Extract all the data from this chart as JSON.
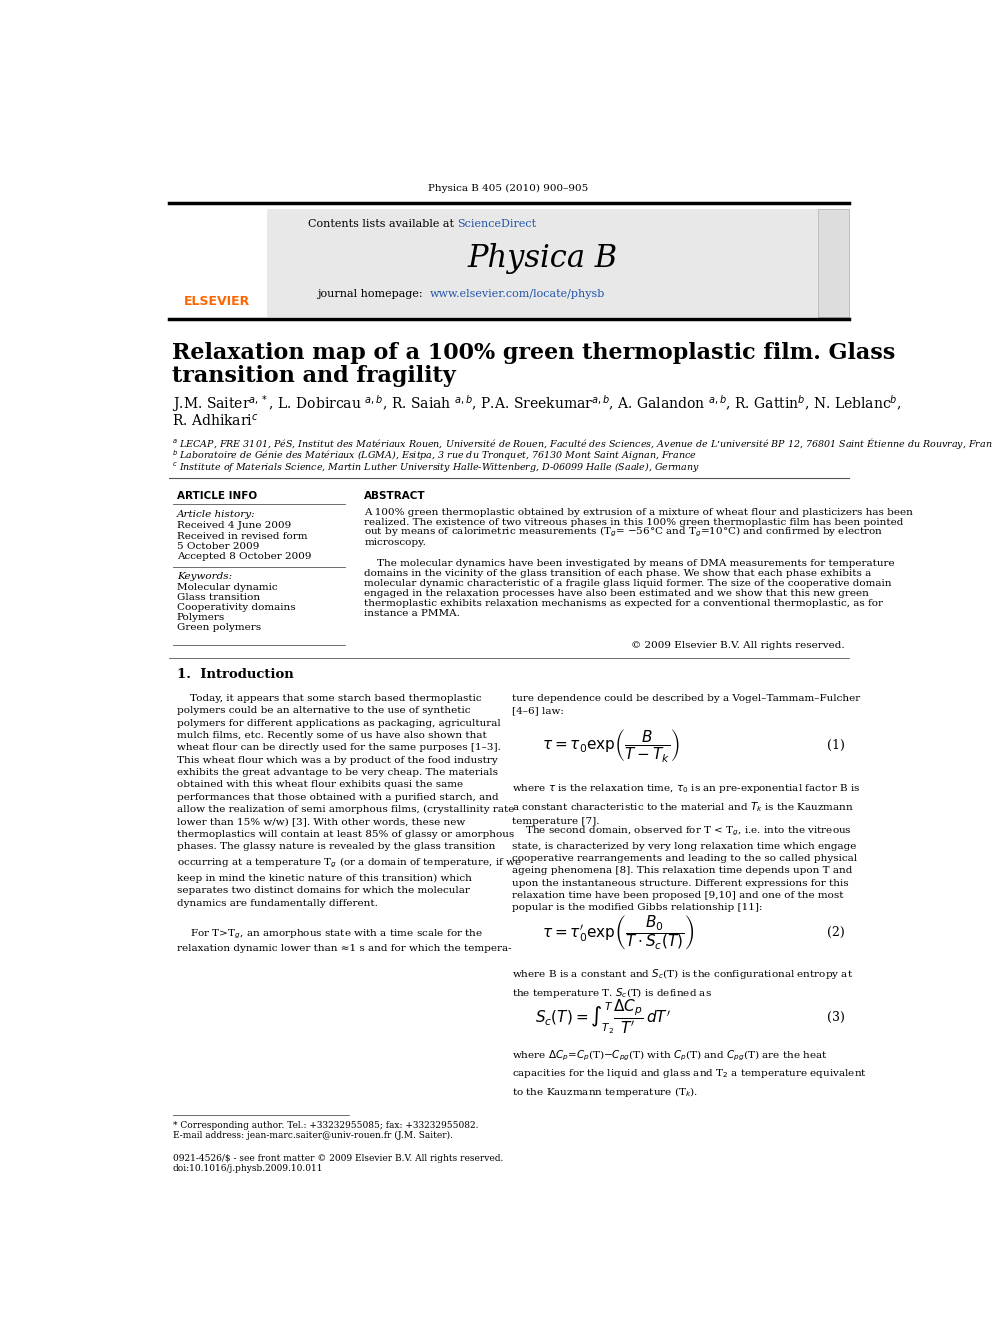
{
  "page_width": 9.92,
  "page_height": 13.23,
  "bg_color": "#ffffff",
  "journal_ref": "Physica B 405 (2010) 900–905",
  "journal_name": "Physica B",
  "contents_text": "Contents lists available at ScienceDirect",
  "sciencedirect_color": "#2255aa",
  "journal_url": "www.elsevier.com/locate/physb",
  "header_bg": "#e8e8e8",
  "title_line1": "Relaxation map of a 100% green thermoplastic film. Glass",
  "title_line2": "transition and fragility",
  "authors_line1": "J.M. Saiter$^{a,*}$, L. Dobircau $^{a,b}$, R. Saiah $^{a,b}$, P.A. Sreekumar$^{a,b}$, A. Galandon $^{a,b}$, R. Gattin$^{b}$, N. Leblanc$^{b}$,",
  "authors_line2": "R. Adhikari$^{c}$",
  "affil_a": "$^a$ LECAP, FRE 3101, PéS, Institut des Matériaux Rouen, Université de Rouen, Faculté des Sciences, Avenue de L’université BP 12, 76801 Saint Étienne du Rouvray, France",
  "affil_b": "$^b$ Laboratoire de Génie des Matériaux (LGMA), Esitpa, 3 rue du Tronquet, 76130 Mont Saint Aignan, France",
  "affil_c": "$^c$ Institute of Materials Science, Martin Luther University Halle-Wittenberg, D-06099 Halle (Saale), Germany",
  "article_info_header": "ARTICLE INFO",
  "abstract_header": "ABSTRACT",
  "article_history_label": "Article history:",
  "received1": "Received 4 June 2009",
  "received_revised1": "Received in revised form",
  "received_revised2": "5 October 2009",
  "accepted": "Accepted 8 October 2009",
  "keywords_label": "Keywords:",
  "keywords": [
    "Molecular dynamic",
    "Glass transition",
    "Cooperativity domains",
    "Polymers",
    "Green polymers"
  ],
  "abs_p1_line1": "A 100% green thermoplastic obtained by extrusion of a mixture of wheat flour and plasticizers has been",
  "abs_p1_line2": "realized. The existence of two vitreous phases in this 100% green thermoplastic film has been pointed",
  "abs_p1_line3": "out by means of calorimetric measurements (T$_g$= −56°C and T$_g$=10°C) and confirmed by electron",
  "abs_p1_line4": "microscopy.",
  "copyright": "© 2009 Elsevier B.V. All rights reserved.",
  "section1_title": "1.  Introduction",
  "intro_col1": "    Today, it appears that some starch based thermoplastic\npolymers could be an alternative to the use of synthetic\npolymers for different applications as packaging, agricultural\nmulch films, etc. Recently some of us have also shown that\nwheat flour can be directly used for the same purposes [1–3].\nThis wheat flour which was a by product of the food industry\nexhibits the great advantage to be very cheap. The materials\nobtained with this wheat flour exhibits quasi the same\nperformances that those obtained with a purified starch, and\nallow the realization of semi amorphous films, (crystallinity rate\nlower than 15% w/w) [3]. With other words, these new\nthermoplastics will contain at least 85% of glassy or amorphous\nphases. The glassy nature is revealed by the glass transition\noccurring at a temperature T$_g$ (or a domain of temperature, if we\nkeep in mind the kinetic nature of this transition) which\nseparates two distinct domains for which the molecular\ndynamics are fundamentally different.",
  "intro_col1_end": "    For T>T$_g$, an amorphous state with a time scale for the\nrelaxation dynamic lower than ≈1 s and for which the tempera-",
  "intro_col2_start": "ture dependence could be described by a Vogel–Tammam–Fulcher\n[4–6] law:",
  "eq1_label": "(1)",
  "eq1_where": "where $\\tau$ is the relaxation time, $\\tau_0$ is an pre-exponential factor B is\na constant characteristic to the material and $T_k$ is the Kauzmann\ntemperature [7].",
  "intro_col2_p2": "    The second domain, observed for T < T$_g$, i.e. into the vitreous\nstate, is characterized by very long relaxation time which engage\ncooperative rearrangements and leading to the so called physical\nageing phenomena [8]. This relaxation time depends upon T and\nupon the instantaneous structure. Different expressions for this\nrelaxation time have been proposed [9,10] and one of the most\npopular is the modified Gibbs relationship [11]:",
  "eq2_label": "(2)",
  "eq2_where": "where B is a constant and $S_c$(T) is the configurational entropy at\nthe temperature T. $S_c$(T) is defined as",
  "eq3_label": "(3)",
  "eq3_where": "where $\\Delta C_p$=$C_p$(T)$-C_{pg}$(T) with $C_p$(T) and $C_{pg}$(T) are the heat\ncapacities for the liquid and glass and T$_2$ a temperature equivalent\nto the Kauzmann temperature (T$_k$).",
  "footnote_star": "* Corresponding author. Tel.: +33232955085; fax: +33232955082.",
  "footnote_email": "E-mail address: jean-marc.saiter@univ-rouen.fr (J.M. Saiter).",
  "bottom_issn1": "0921-4526/$ - see front matter © 2009 Elsevier B.V. All rights reserved.",
  "bottom_issn2": "doi:10.1016/j.physb.2009.10.011",
  "elsevier_color": "#ff6600",
  "link_color": "#2255aa"
}
